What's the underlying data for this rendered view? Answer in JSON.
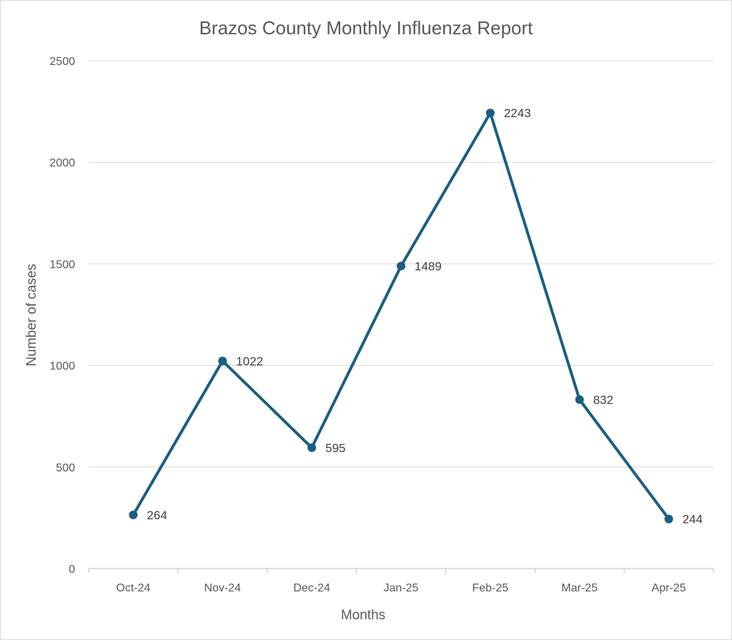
{
  "chart_data": {
    "type": "line",
    "title": "Brazos County Monthly Influenza Report",
    "xlabel": "Months",
    "ylabel": "Number of cases",
    "categories": [
      "Oct-24",
      "Nov-24",
      "Dec-24",
      "Jan-25",
      "Feb-25",
      "Mar-25",
      "Apr-25"
    ],
    "series": [
      {
        "values": [
          264,
          1022,
          595,
          1489,
          2243,
          832,
          244
        ],
        "color": "#1a5e80"
      }
    ],
    "ylim": [
      0,
      2500
    ],
    "yticks": [
      0,
      500,
      1000,
      1500,
      2000,
      2500
    ],
    "grid": true,
    "data_labels": true,
    "legend": "none"
  }
}
